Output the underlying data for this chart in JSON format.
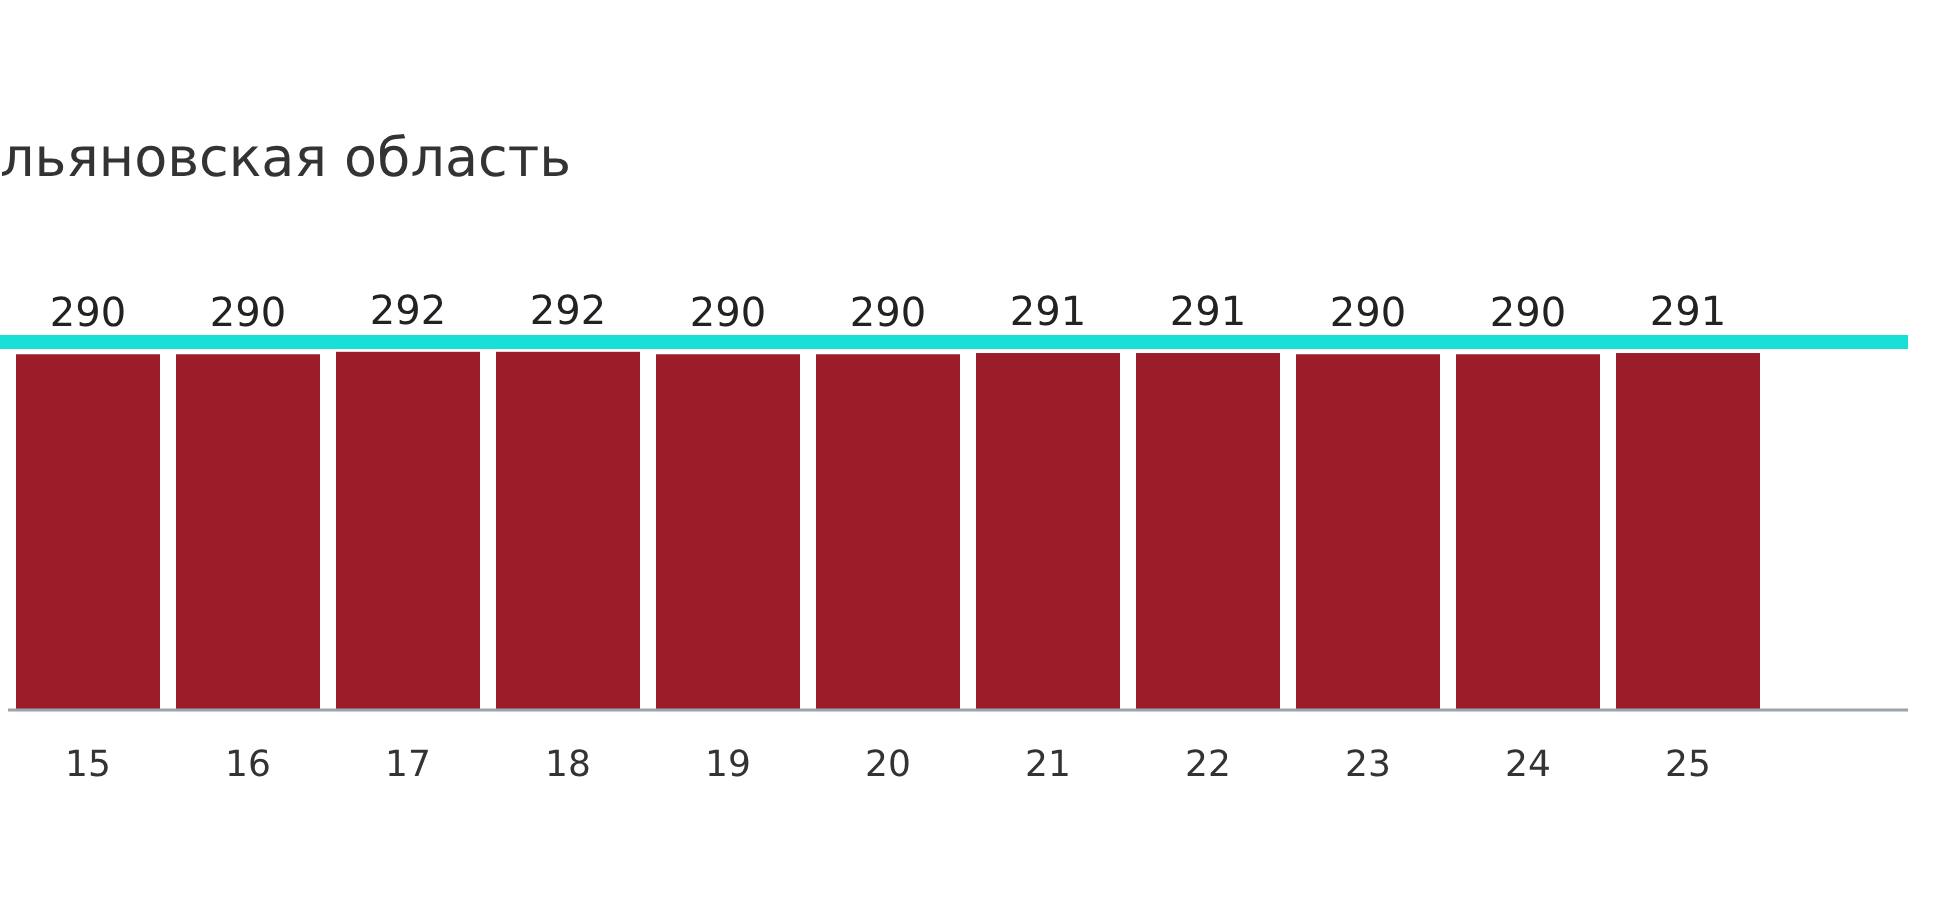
{
  "chart_data": {
    "type": "bar",
    "title": "льяновская область",
    "categories": [
      "15",
      "16",
      "17",
      "18",
      "19",
      "20",
      "21",
      "22",
      "23",
      "24",
      "25",
      null
    ],
    "values": [
      290,
      290,
      292,
      292,
      290,
      290,
      291,
      291,
      290,
      290,
      291,
      null
    ],
    "color": "#9b1d2a",
    "ylim": [
      0,
      300
    ],
    "tick_labels": "x",
    "data_labels": true,
    "ref_lines": [
      {
        "axis": "y",
        "value": 300,
        "color": "#19e0d6"
      }
    ]
  }
}
